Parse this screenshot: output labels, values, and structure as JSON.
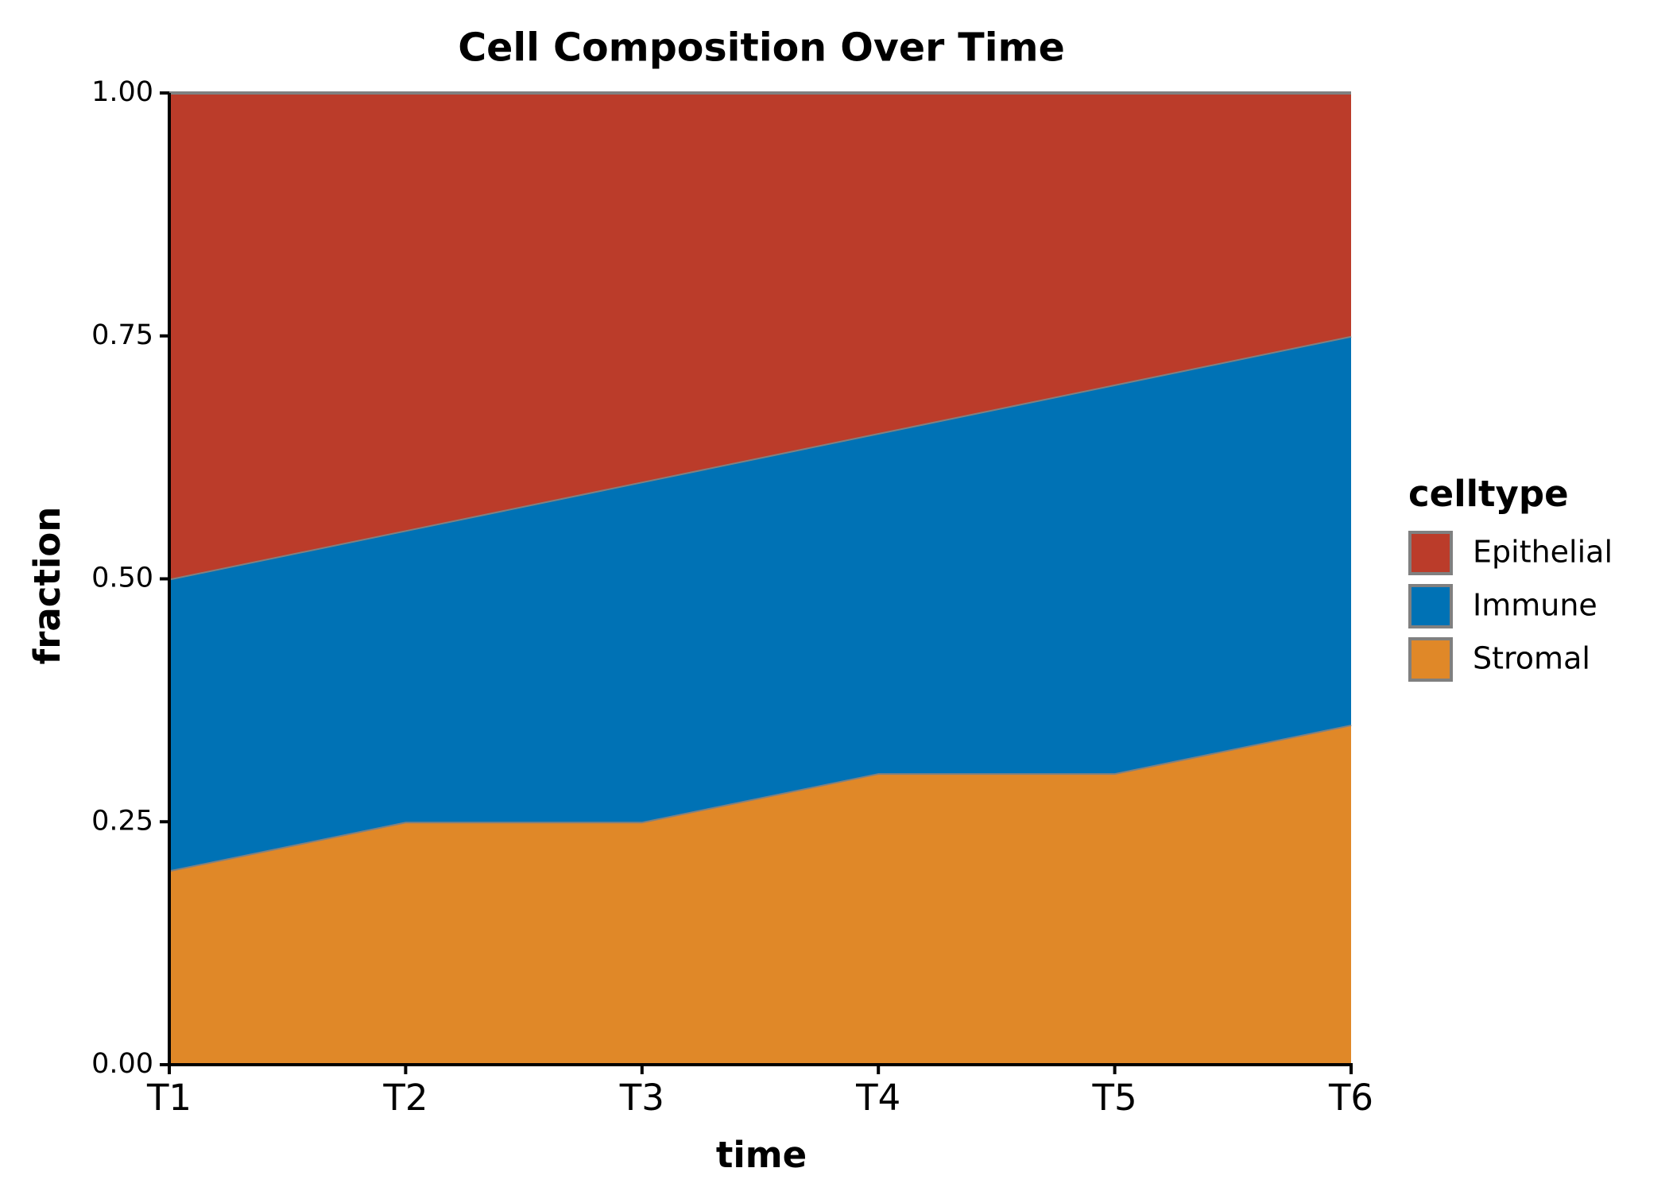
{
  "chart_data": {
    "type": "stacked_area",
    "title": "Cell Composition Over Time",
    "x_label": "time",
    "y_label": "fraction",
    "categories": [
      "T1",
      "T2",
      "T3",
      "T4",
      "T5",
      "T6"
    ],
    "series": [
      {
        "name": "Stromal",
        "color": "#e08828",
        "values": [
          0.2,
          0.25,
          0.25,
          0.3,
          0.3,
          0.35
        ]
      },
      {
        "name": "Immune",
        "color": "#0072b5",
        "values": [
          0.3,
          0.3,
          0.35,
          0.35,
          0.4,
          0.4
        ]
      },
      {
        "name": "Epithelial",
        "color": "#bb3c2a",
        "values": [
          0.5,
          0.45,
          0.4,
          0.35,
          0.3,
          0.25
        ]
      }
    ],
    "ylim": [
      0,
      1
    ],
    "yticks": [
      {
        "value": 0,
        "label": "0.00"
      },
      0.25,
      {
        "value": 0.5,
        "label": "0.50"
      },
      0.75,
      {
        "value": 1,
        "label": "1.00"
      }
    ],
    "legend_title": "celltype",
    "legend_position": "right",
    "grid": false
  }
}
